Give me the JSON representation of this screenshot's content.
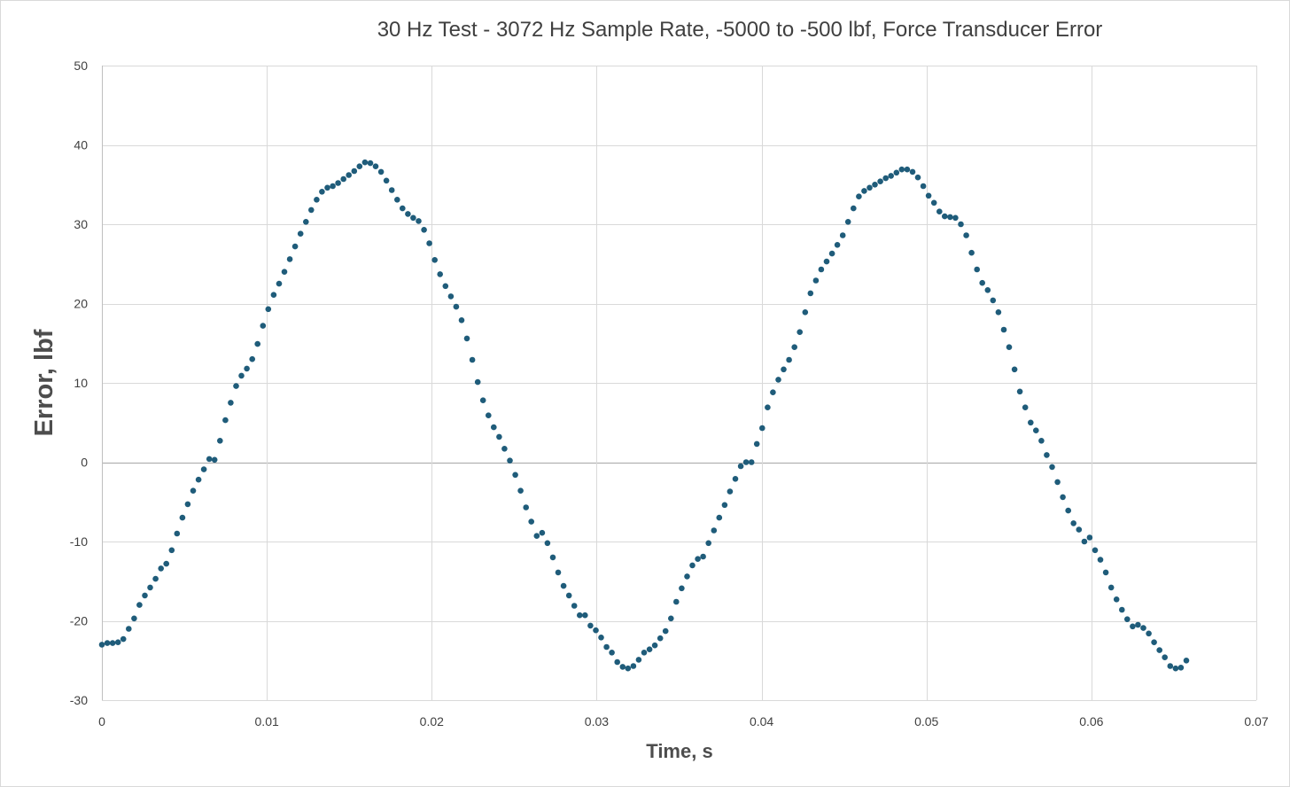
{
  "chart_data": {
    "type": "scatter",
    "title": "30 Hz Test - 3072 Hz Sample Rate, -5000 to -500 lbf, Force Transducer Error",
    "xlabel": "Time, s",
    "ylabel": "Error, lbf",
    "xlim": [
      0,
      0.07
    ],
    "ylim": [
      -30,
      50
    ],
    "x_ticks": [
      0,
      0.01,
      0.02,
      0.03,
      0.04,
      0.05,
      0.06,
      0.07
    ],
    "x_tick_labels": [
      "0",
      "0.01",
      "0.02",
      "0.03",
      "0.04",
      "0.05",
      "0.06",
      "0.07"
    ],
    "y_ticks": [
      -30,
      -20,
      -10,
      0,
      10,
      20,
      30,
      40,
      50
    ],
    "y_tick_labels": [
      "-30",
      "-20",
      "-10",
      "0",
      "10",
      "20",
      "30",
      "40",
      "50"
    ],
    "grid": true,
    "legend": "none",
    "marker_color": "#1F5C7A",
    "x_start": 0,
    "x_step": 0.00032552,
    "series": [
      {
        "values": [
          -23.0,
          -22.8,
          -22.8,
          -22.7,
          -22.3,
          -21.0,
          -19.7,
          -18.0,
          -16.8,
          -15.8,
          -14.7,
          -13.4,
          -12.8,
          -11.1,
          -9.0,
          -7.0,
          -5.3,
          -3.6,
          -2.2,
          -0.9,
          0.4,
          0.3,
          2.7,
          5.3,
          7.5,
          9.6,
          10.9,
          11.8,
          13.0,
          14.9,
          17.2,
          19.3,
          21.1,
          22.5,
          24.0,
          25.6,
          27.2,
          28.8,
          30.3,
          31.8,
          33.1,
          34.1,
          34.6,
          34.8,
          35.2,
          35.7,
          36.2,
          36.7,
          37.3,
          37.8,
          37.7,
          37.3,
          36.6,
          35.5,
          34.3,
          33.1,
          32.0,
          31.3,
          30.8,
          30.4,
          29.3,
          27.6,
          25.5,
          23.7,
          22.2,
          20.9,
          19.6,
          17.9,
          15.6,
          12.9,
          10.1,
          7.8,
          5.9,
          4.4,
          3.2,
          1.7,
          0.2,
          -1.6,
          -3.6,
          -5.7,
          -7.5,
          -9.3,
          -8.9,
          -10.2,
          -12.0,
          -13.9,
          -15.6,
          -16.8,
          -18.1,
          -19.3,
          -19.3,
          -20.6,
          -21.2,
          -22.1,
          -23.3,
          -24.0,
          -25.2,
          -25.8,
          -26.0,
          -25.7,
          -24.9,
          -24.0,
          -23.6,
          -23.1,
          -22.2,
          -21.3,
          -19.7,
          -17.6,
          -15.9,
          -14.4,
          -13.0,
          -12.2,
          -11.9,
          -10.2,
          -8.6,
          -7.0,
          -5.4,
          -3.7,
          -2.1,
          -0.5,
          0.0,
          0.0,
          2.3,
          4.3,
          6.9,
          8.8,
          10.4,
          11.7,
          12.9,
          14.5,
          16.4,
          18.9,
          21.3,
          22.9,
          24.3,
          25.3,
          26.3,
          27.4,
          28.6,
          30.3,
          32.0,
          33.5,
          34.2,
          34.6,
          35.0,
          35.4,
          35.8,
          36.1,
          36.5,
          36.9,
          36.9,
          36.6,
          35.9,
          34.8,
          33.6,
          32.7,
          31.6,
          31.0,
          30.9,
          30.8,
          30.0,
          28.6,
          26.4,
          24.3,
          22.6,
          21.7,
          20.4,
          18.9,
          16.7,
          14.5,
          11.7,
          8.9,
          6.9,
          5.0,
          4.0,
          2.7,
          0.9,
          -0.6,
          -2.5,
          -4.4,
          -6.1,
          -7.7,
          -8.5,
          -10.0,
          -9.5,
          -11.1,
          -12.3,
          -13.9,
          -15.8,
          -17.3,
          -18.6,
          -19.8,
          -20.7,
          -20.5,
          -20.9,
          -21.6,
          -22.7,
          -23.7,
          -24.6,
          -25.7,
          -26.0,
          -25.9,
          -25.0
        ]
      }
    ]
  }
}
